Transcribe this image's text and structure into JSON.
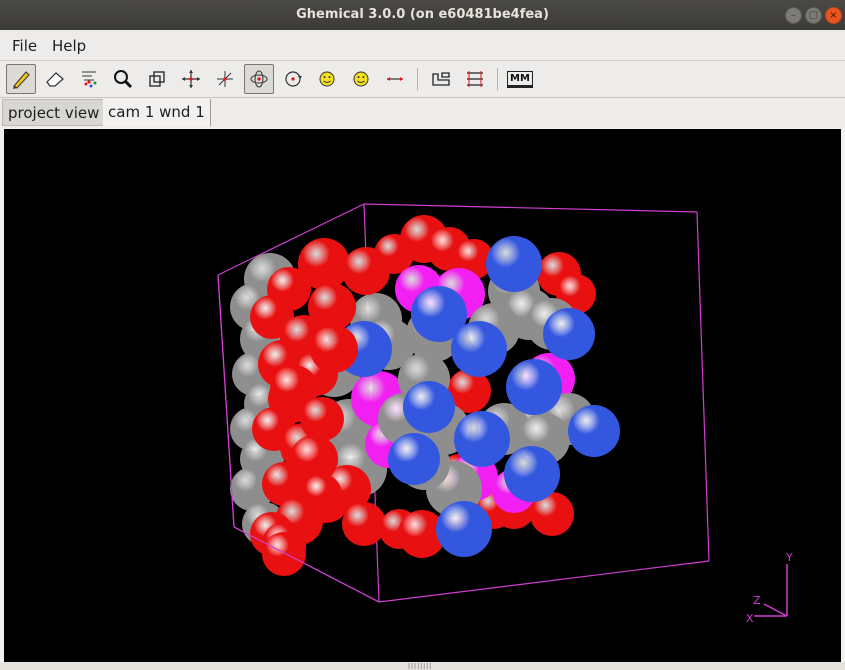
{
  "window": {
    "title": "Ghemical 3.0.0 (on e60481be4fea)"
  },
  "menus": [
    {
      "label": "File"
    },
    {
      "label": "Help"
    }
  ],
  "toolbar": {
    "tools": [
      {
        "name": "draw-tool"
      },
      {
        "name": "erase-tool"
      },
      {
        "name": "select-tool"
      },
      {
        "name": "zoom-tool"
      },
      {
        "name": "clipping-tool"
      },
      {
        "name": "translate-xy-tool"
      },
      {
        "name": "translate-z-tool"
      },
      {
        "name": "orbit-xy-tool"
      },
      {
        "name": "orbit-z-tool"
      },
      {
        "name": "rotate-xy-tool"
      },
      {
        "name": "rotate-z-tool"
      },
      {
        "name": "measure-tool"
      },
      {
        "name": "element-tool"
      },
      {
        "name": "bondtype-tool"
      },
      {
        "name": "mm-tool"
      }
    ],
    "mm_label": "MM"
  },
  "tabs": [
    {
      "label": "project view"
    },
    {
      "label": "cam 1 wnd 1"
    }
  ],
  "colors": {
    "oxygen": "#e81010",
    "carbon": "#8e8e8e",
    "nitrogen": "#3457e0",
    "magenta": "#f11ff1",
    "box": "#d13ed1",
    "background": "#000000"
  },
  "axes": {
    "x_label": "X",
    "y_label": "Y",
    "z_label": "Z"
  }
}
